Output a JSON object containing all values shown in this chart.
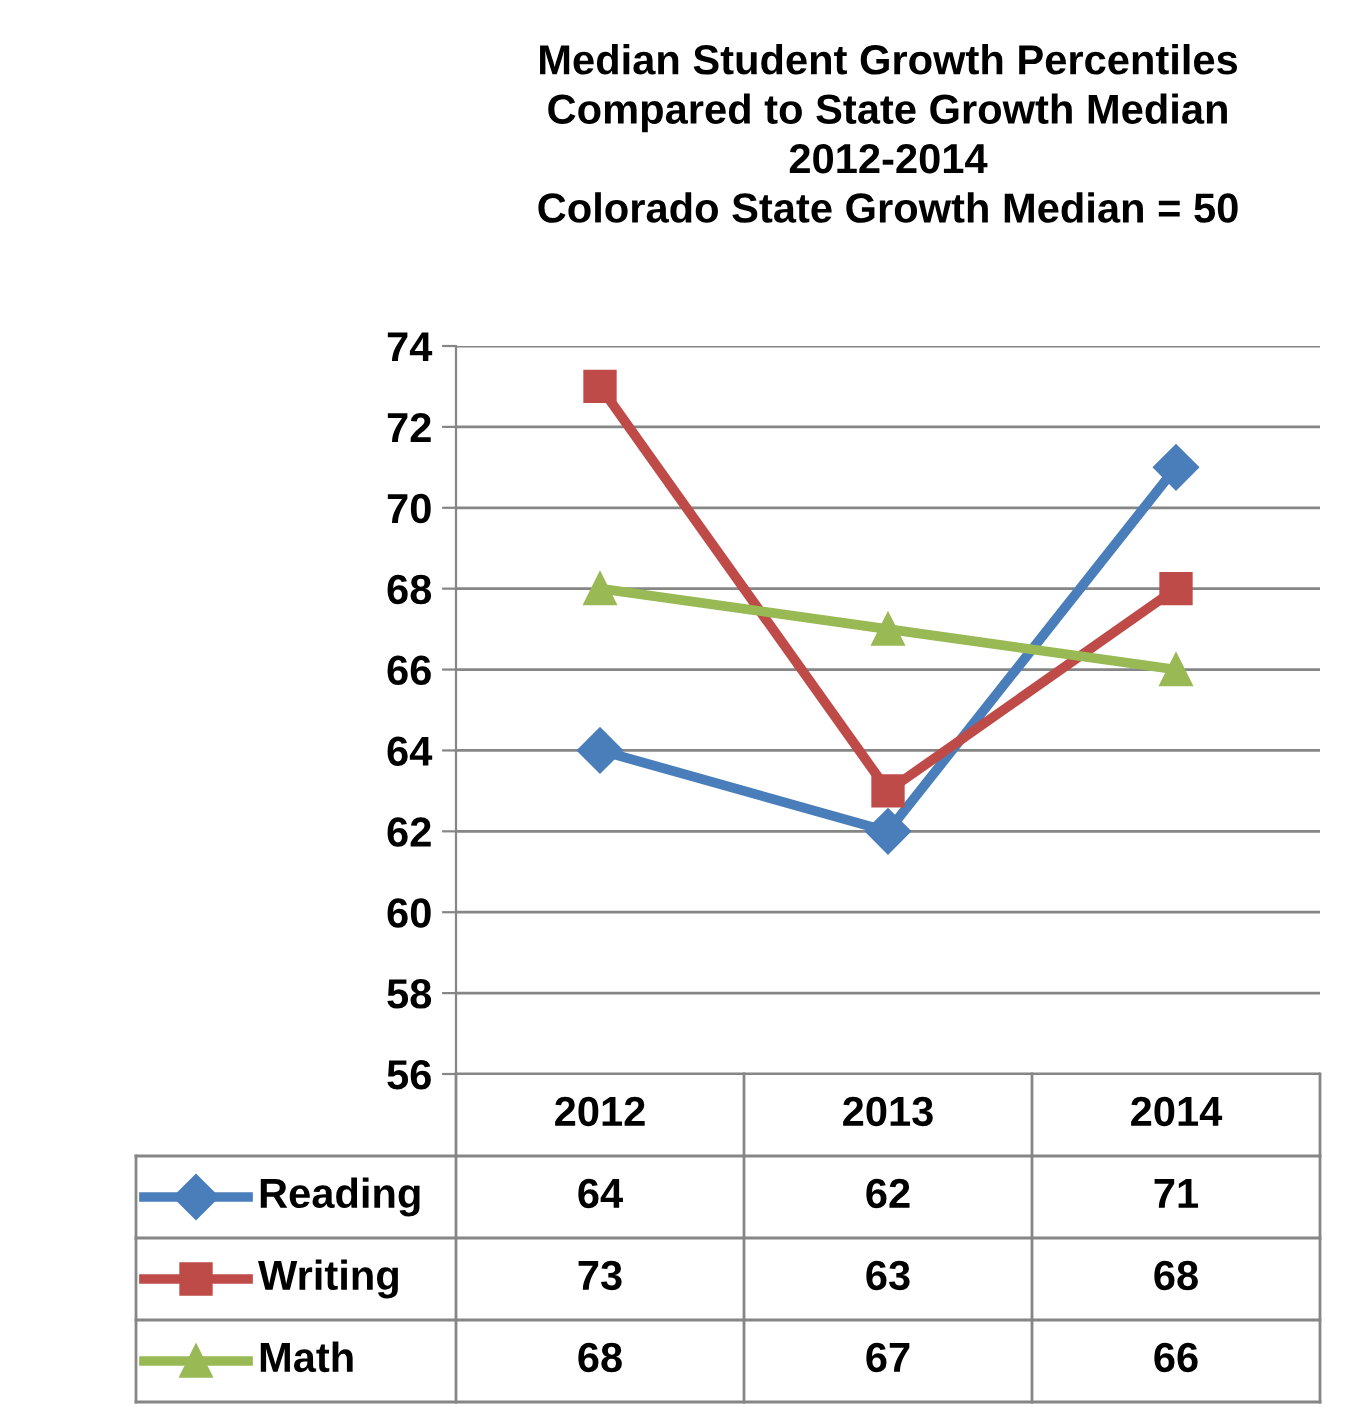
{
  "chart_data": {
    "type": "line",
    "title": "Median Student Growth Percentiles\nCompared to State Growth Median\n2012-2014\nColorado State Growth Median = 50",
    "categories": [
      "2012",
      "2013",
      "2014"
    ],
    "series": [
      {
        "name": "Reading",
        "color": "#4a7ebb",
        "marker": "diamond",
        "values": [
          64,
          62,
          71
        ]
      },
      {
        "name": "Writing",
        "color": "#be4b48",
        "marker": "square",
        "values": [
          73,
          63,
          68
        ]
      },
      {
        "name": "Math",
        "color": "#98b954",
        "marker": "triangle",
        "values": [
          68,
          67,
          66
        ]
      }
    ],
    "ylim": [
      56,
      74
    ],
    "yticks": [
      56,
      58,
      60,
      62,
      64,
      66,
      68,
      70,
      72,
      74
    ],
    "grid": "y",
    "legend": "bottom",
    "data_labels": true,
    "line_style": "solid"
  }
}
